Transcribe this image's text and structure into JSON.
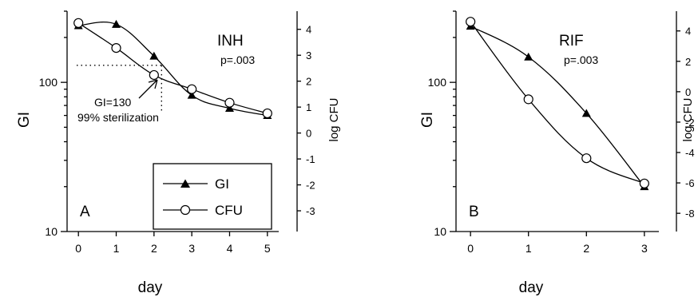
{
  "chart_data": [
    {
      "type": "line",
      "panel_letter": "A",
      "drug": "INH",
      "p_value": "p=.003",
      "xlabel": "day",
      "ylabel": "GI",
      "y2label": "log CFU",
      "x": [
        0,
        1,
        2,
        3,
        4,
        5
      ],
      "xlim": [
        -0.3,
        5.3
      ],
      "ylim": [
        10,
        300
      ],
      "y_scale": "log",
      "y_ticks": [
        10,
        100
      ],
      "y2lim": [
        -3.8,
        4.7
      ],
      "y2_ticks": [
        -3,
        -2,
        -1,
        0,
        1,
        2,
        3,
        4
      ],
      "series": [
        {
          "name": "GI",
          "marker": "filled-triangle",
          "values": [
            240,
            245,
            150,
            82,
            67,
            60
          ]
        },
        {
          "name": "CFU",
          "marker": "open-circle",
          "values": [
            250,
            170,
            112,
            90,
            73,
            62
          ]
        }
      ],
      "annotation": {
        "line1": "GI=130",
        "line2": "99% sterilization",
        "gi_value": 130,
        "day": 2.2
      },
      "legend": {
        "position": "lower-right",
        "entries": [
          "GI",
          "CFU"
        ]
      },
      "grid": false
    },
    {
      "type": "line",
      "panel_letter": "B",
      "drug": "RIF",
      "p_value": "p=.003",
      "xlabel": "day",
      "ylabel": "GI",
      "y2label": "log CFU",
      "x": [
        0,
        1,
        2,
        3
      ],
      "xlim": [
        -0.25,
        3.25
      ],
      "ylim": [
        10,
        300
      ],
      "y_scale": "log",
      "y_ticks": [
        10,
        100
      ],
      "y2lim": [
        -9.2,
        5.3
      ],
      "y2_ticks": [
        -8,
        -6,
        -4,
        -2,
        0,
        2,
        4
      ],
      "series": [
        {
          "name": "GI",
          "marker": "filled-triangle",
          "values": [
            238,
            148,
            62,
            20
          ]
        },
        {
          "name": "CFU",
          "marker": "open-circle",
          "values": [
            255,
            77,
            31,
            21
          ]
        }
      ],
      "grid": false
    }
  ]
}
